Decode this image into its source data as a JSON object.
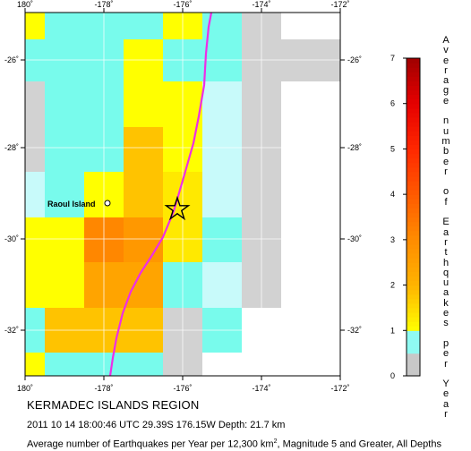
{
  "map": {
    "x_ticks": [
      "180˚",
      "-178˚",
      "-176˚",
      "-174˚",
      "-172˚"
    ],
    "y_ticks": [
      "-26˚",
      "-28˚",
      "-30˚",
      "-32˚"
    ],
    "place_label": "Raoul Island",
    "epicenter_marker": "star-icon",
    "trench_line_color": "#ee2ee6",
    "grid_cells": [
      [
        1,
        0.2,
        0.2,
        0.2,
        1,
        0.2,
        -0.7,
        -1,
        -1
      ],
      [
        0.2,
        0.2,
        0.2,
        1,
        0.2,
        0.2,
        -0.7,
        -0.7,
        -0.7
      ],
      [
        -0.7,
        0.1,
        0.2,
        1,
        1,
        0.2,
        -0.7,
        -1,
        -1
      ],
      [
        -0.7,
        0.2,
        0.2,
        1,
        1,
        0.1,
        -0.7,
        -1,
        -1
      ],
      [
        -0.7,
        0.2,
        0.2,
        1.8,
        1,
        0.1,
        -0.7,
        -1,
        -1
      ],
      [
        -0.7,
        0.2,
        0.2,
        1.8,
        1,
        0.1,
        -0.7,
        -1,
        -1
      ],
      [
        0.1,
        0.2,
        1,
        1.8,
        1.3,
        0.1,
        -0.7,
        -1,
        -1
      ],
      [
        0.2,
        1,
        1,
        1.8,
        1,
        -0.7,
        -0.7,
        -1,
        -1
      ],
      [
        1,
        1,
        3.1,
        2.7,
        1.3,
        0.2,
        -0.7,
        -1,
        -1
      ],
      [
        1,
        1,
        2.5,
        2.3,
        1.2,
        -0.7,
        -0.7,
        -1,
        -1
      ],
      [
        1,
        1,
        2.4,
        2.4,
        0.2,
        0.1,
        -0.7,
        -1,
        -1
      ],
      [
        1,
        1,
        2.4,
        2.4,
        0.1,
        0.2,
        -1,
        -1,
        -1
      ],
      [
        0.2,
        1.8,
        1.8,
        1.8,
        -0.7,
        0.2,
        -1,
        -1,
        -1
      ],
      [
        0.2,
        1.8,
        1.8,
        0.2,
        -0.7,
        -1,
        -1,
        -1,
        -1
      ],
      [
        1,
        0.2,
        0.2,
        0.2,
        -0.7,
        -1,
        -1,
        -1,
        -1
      ],
      [
        1,
        0.2,
        0.2,
        0.1,
        -1,
        -1,
        -1,
        -1,
        -1
      ]
    ]
  },
  "legend": {
    "ticks": [
      "0",
      "1",
      "2",
      "3",
      "4",
      "5",
      "6",
      "7"
    ],
    "title_letters": [
      "A",
      "v",
      "e",
      "r",
      "a",
      "g",
      "e",
      "",
      "n",
      "u",
      "m",
      "b",
      "e",
      "r",
      "",
      "o",
      "f",
      "",
      "E",
      "a",
      "r",
      "t",
      "h",
      "q",
      "u",
      "a",
      "k",
      "e",
      "s",
      "",
      "p",
      "e",
      "r",
      "",
      "Y",
      "e",
      "a",
      "r"
    ],
    "color_stops": [
      {
        "value": 0,
        "color": "#c8c8c8"
      },
      {
        "value": 1,
        "color": "#ffff00"
      },
      {
        "value": 2,
        "color": "#ffb400"
      },
      {
        "value": 3,
        "color": "#ff8c00"
      },
      {
        "value": 4,
        "color": "#ff5a00"
      },
      {
        "value": 5,
        "color": "#ff2800"
      },
      {
        "value": 6,
        "color": "#e60000"
      },
      {
        "value": 7,
        "color": "#a00000"
      }
    ]
  },
  "captions": {
    "region_title": "KERMADEC ISLANDS REGION",
    "event_line": "2011 10 14 18:00:46 UTC 29.39S 176.15W Depth: 21.7 km",
    "note_prefix": "Average number of Earthquakes per Year per 12,300 km",
    "note_sup": "2",
    "note_suffix": ", Magnitude 5 and Greater, All Depths"
  }
}
